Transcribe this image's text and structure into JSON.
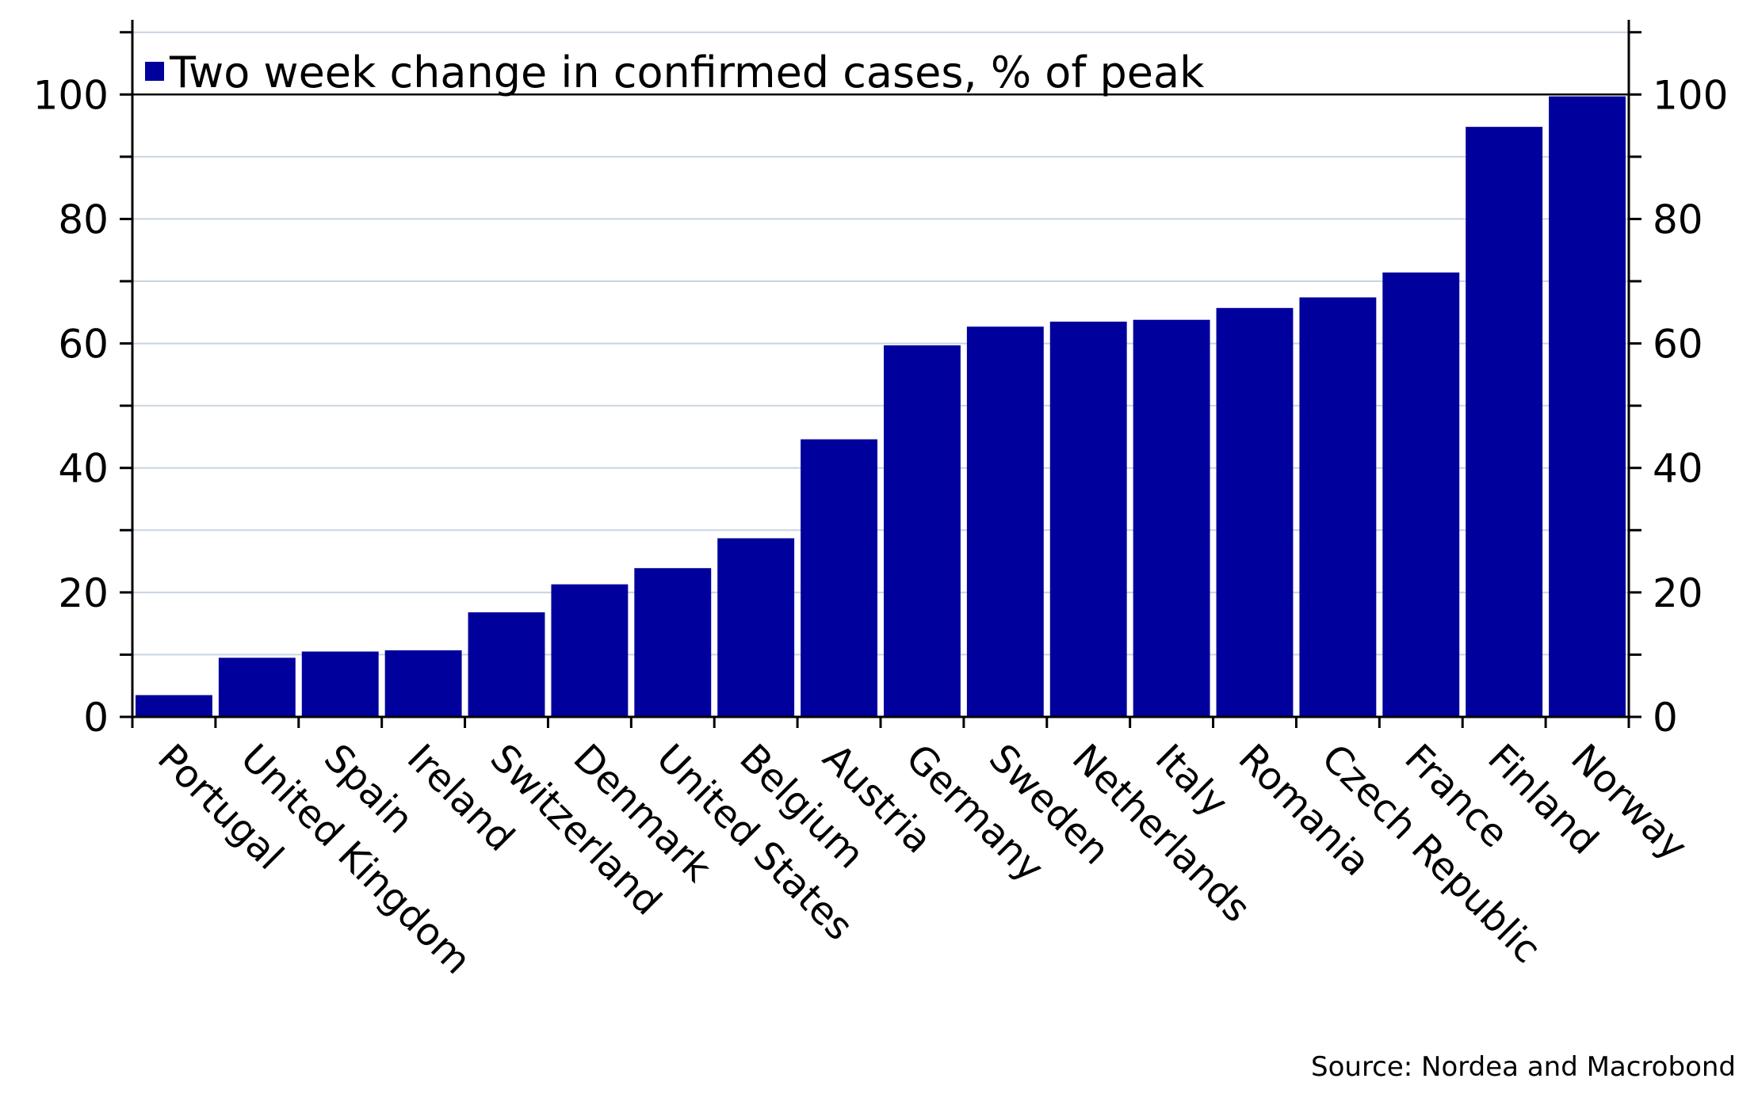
{
  "chart_data": {
    "type": "bar",
    "categories": [
      "Portugal",
      "United Kingdom",
      "Spain",
      "Ireland",
      "Switzerland",
      "Denmark",
      "United States",
      "Belgium",
      "Austria",
      "Germany",
      "Sweden",
      "Netherlands",
      "Italy",
      "Romania",
      "Czech Republic",
      "France",
      "Finland",
      "Norway"
    ],
    "series": [
      {
        "name": "Two week change in confirmed cases, % of peak",
        "values": [
          3.5,
          9.5,
          10.5,
          10.7,
          16.8,
          21.3,
          23.9,
          28.7,
          44.6,
          59.7,
          62.7,
          63.5,
          63.8,
          65.7,
          67.4,
          71.4,
          94.8,
          99.7
        ],
        "color": "#00009c"
      }
    ],
    "ylim": [
      0,
      112
    ],
    "yticks": [
      0,
      20,
      40,
      60,
      80,
      100
    ],
    "ytick_labels": [
      "0",
      "20",
      "40",
      "60",
      "80",
      "100"
    ],
    "minor_ytick_step": 10,
    "y_axis_left": true,
    "y_axis_right": true,
    "grid": true,
    "grid_color": "#c8d4e0",
    "legend_position": "top-left",
    "title": "",
    "xlabel": "",
    "ylabel": "",
    "source": "Source: Nordea and Macrobond"
  }
}
